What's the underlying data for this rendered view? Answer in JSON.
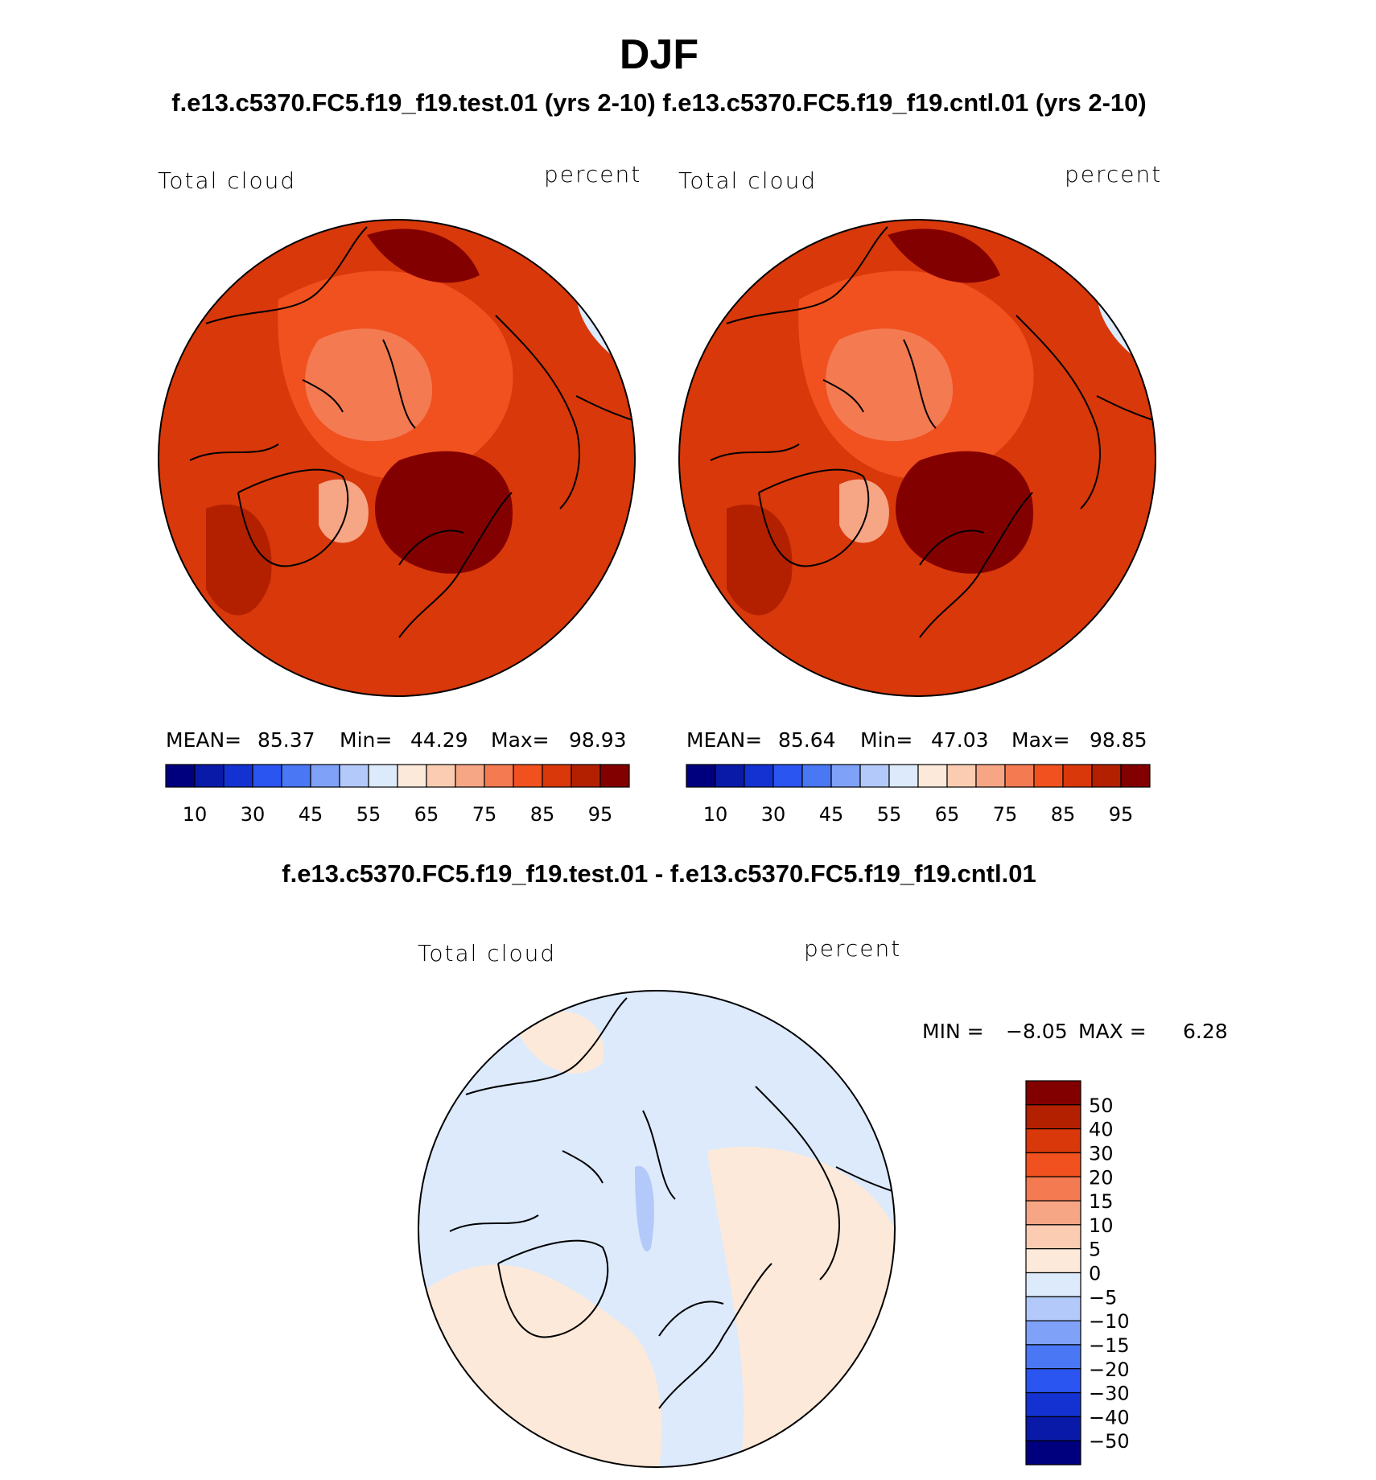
{
  "page": {
    "title": "DJF",
    "case_header": "f.e13.c5370.FC5.f19_f19.test.01 (yrs 2-10) f.e13.c5370.FC5.f19_f19.cntl.01 (yrs 2-10)",
    "diff_header": "f.e13.c5370.FC5.f19_f19.test.01 - f.e13.c5370.FC5.f19_f19.cntl.01"
  },
  "chart_data": [
    {
      "type": "heatmap",
      "projection": "north-polar-stereographic",
      "panel": "test",
      "variable_label": "Total cloud",
      "units_label": "percent",
      "stats": {
        "mean_label": "MEAN=",
        "mean": "85.37",
        "min_label": "Min=",
        "min": "44.29",
        "max_label": "Max=",
        "max": "98.93"
      },
      "colorbar": {
        "orientation": "horizontal",
        "tick_labels": [
          "10",
          "30",
          "45",
          "55",
          "65",
          "75",
          "85",
          "95"
        ],
        "colors": [
          "#00007f",
          "#0a1aa8",
          "#1432d2",
          "#2a55f0",
          "#4a78f4",
          "#7fa2f8",
          "#b2c9fa",
          "#dceafc",
          "#fde9d9",
          "#fbccb2",
          "#f6a585",
          "#f47a52",
          "#f0511f",
          "#d8380a",
          "#b32000",
          "#830000"
        ]
      }
    },
    {
      "type": "heatmap",
      "projection": "north-polar-stereographic",
      "panel": "control",
      "variable_label": "Total cloud",
      "units_label": "percent",
      "stats": {
        "mean_label": "MEAN=",
        "mean": "85.64",
        "min_label": "Min=",
        "min": "47.03",
        "max_label": "Max=",
        "max": "98.85"
      },
      "colorbar": {
        "orientation": "horizontal",
        "tick_labels": [
          "10",
          "30",
          "45",
          "55",
          "65",
          "75",
          "85",
          "95"
        ],
        "colors": [
          "#00007f",
          "#0a1aa8",
          "#1432d2",
          "#2a55f0",
          "#4a78f4",
          "#7fa2f8",
          "#b2c9fa",
          "#dceafc",
          "#fde9d9",
          "#fbccb2",
          "#f6a585",
          "#f47a52",
          "#f0511f",
          "#d8380a",
          "#b32000",
          "#830000"
        ]
      }
    },
    {
      "type": "heatmap",
      "projection": "north-polar-stereographic",
      "panel": "difference",
      "variable_label": "Total cloud",
      "units_label": "percent",
      "stats": {
        "min_label": "MIN =",
        "min": "−8.05",
        "max_label": "MAX =",
        "max": "6.28"
      },
      "colorbar": {
        "orientation": "vertical",
        "tick_labels": [
          "50",
          "40",
          "30",
          "20",
          "15",
          "10",
          "5",
          "0",
          "−5",
          "−10",
          "−15",
          "−20",
          "−30",
          "−40",
          "−50"
        ],
        "colors": [
          "#830000",
          "#b32000",
          "#d8380a",
          "#f0511f",
          "#f47a52",
          "#f6a585",
          "#fbccb2",
          "#fde9d9",
          "#dceafc",
          "#b2c9fa",
          "#7fa2f8",
          "#4a78f4",
          "#2a55f0",
          "#1432d2",
          "#0a1aa8",
          "#00007f"
        ]
      }
    }
  ]
}
